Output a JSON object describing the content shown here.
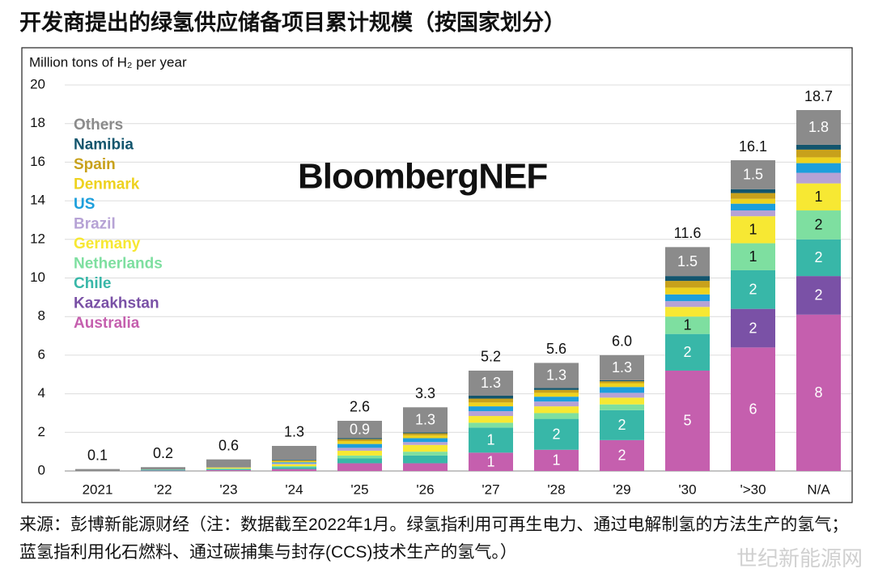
{
  "chart_data": {
    "type": "stacked_bar",
    "title": "开发商提出的绿氢供应储备项目累计规模（按国家划分）",
    "y_axis_label": "Million tons of H₂ per year",
    "annotation": "BloombergNEF",
    "source": "来源：彭博新能源财经（注：数据截至2022年1月。绿氢指利用可再生电力、通过电解制氢的方法生产的氢气；蓝氢指利用化石燃料、通过碳捕集与封存(CCS)技术生产的氢气。）",
    "watermark": "世纪新能源网",
    "categories": [
      "2021",
      "'22",
      "'23",
      "'24",
      "'25",
      "'26",
      "'27",
      "'28",
      "'29",
      "'30",
      "'>30",
      "N/A"
    ],
    "ylim": [
      0,
      20
    ],
    "yticks": [
      0,
      2,
      4,
      6,
      8,
      10,
      12,
      14,
      16,
      18,
      20
    ],
    "grid": true,
    "totals": [
      0.1,
      0.2,
      0.6,
      1.3,
      2.6,
      3.3,
      5.2,
      5.6,
      6.0,
      11.6,
      16.1,
      18.7
    ],
    "total_labels": [
      "0.1",
      "0.2",
      "0.6",
      "1.3",
      "2.6",
      "3.3",
      "5.2",
      "5.6",
      "6.0",
      "11.6",
      "16.1",
      "18.7"
    ],
    "series": [
      {
        "name": "Australia",
        "color": "#c55fae",
        "values": [
          0,
          0.02,
          0.05,
          0.1,
          0.4,
          0.4,
          0.95,
          1.1,
          1.6,
          5.2,
          6.4,
          8.1
        ],
        "value_labels": [
          null,
          null,
          null,
          null,
          null,
          null,
          "1",
          "1",
          "2",
          "5",
          "6",
          "8"
        ]
      },
      {
        "name": "Kazakhstan",
        "color": "#7a51a6",
        "values": [
          0,
          0,
          0,
          0,
          0,
          0,
          0,
          0,
          0,
          0,
          2.0,
          2.0
        ],
        "value_labels": [
          null,
          null,
          null,
          null,
          null,
          null,
          null,
          null,
          null,
          null,
          "2",
          "2"
        ]
      },
      {
        "name": "Chile",
        "color": "#38b7a8",
        "values": [
          0,
          0.04,
          0.05,
          0.1,
          0.25,
          0.4,
          1.3,
          1.6,
          1.55,
          1.9,
          2.0,
          1.9
        ],
        "value_labels": [
          null,
          null,
          null,
          null,
          null,
          null,
          "1",
          "2",
          "2",
          "2",
          "2",
          "2"
        ]
      },
      {
        "name": "Netherlands",
        "color": "#7edfa0",
        "values": [
          0,
          0.02,
          0.03,
          0.05,
          0.15,
          0.2,
          0.25,
          0.3,
          0.3,
          0.9,
          1.4,
          1.5
        ],
        "value_labels": [
          null,
          null,
          null,
          null,
          null,
          null,
          null,
          null,
          null,
          "1",
          "1",
          "2"
        ]
      },
      {
        "name": "Germany",
        "color": "#f7e833",
        "values": [
          0,
          0,
          0.05,
          0.1,
          0.25,
          0.35,
          0.35,
          0.35,
          0.35,
          0.5,
          1.4,
          1.4
        ],
        "value_labels": [
          null,
          null,
          null,
          null,
          null,
          null,
          null,
          null,
          null,
          null,
          "1",
          "1"
        ]
      },
      {
        "name": "Brazil",
        "color": "#b6a2d5",
        "values": [
          0,
          0,
          0,
          0.05,
          0.15,
          0.15,
          0.25,
          0.25,
          0.25,
          0.3,
          0.3,
          0.55
        ]
      },
      {
        "name": "US",
        "color": "#1d9fdc",
        "values": [
          0,
          0,
          0,
          0.05,
          0.2,
          0.2,
          0.25,
          0.25,
          0.3,
          0.35,
          0.35,
          0.5
        ]
      },
      {
        "name": "Denmark",
        "color": "#eed21f",
        "values": [
          0,
          0,
          0,
          0.05,
          0.15,
          0.15,
          0.2,
          0.2,
          0.2,
          0.35,
          0.25,
          0.3
        ]
      },
      {
        "name": "Spain",
        "color": "#c8a11b",
        "values": [
          0,
          0,
          0,
          0.05,
          0.1,
          0.1,
          0.2,
          0.15,
          0.1,
          0.35,
          0.3,
          0.4
        ]
      },
      {
        "name": "Namibia",
        "color": "#13556d",
        "values": [
          0,
          0,
          0,
          0.03,
          0.05,
          0.05,
          0.15,
          0.1,
          0.05,
          0.25,
          0.2,
          0.25
        ]
      },
      {
        "name": "Others",
        "color": "#8b8b8b",
        "values": [
          0.1,
          0.12,
          0.42,
          0.72,
          0.9,
          1.3,
          1.3,
          1.3,
          1.3,
          1.5,
          1.5,
          1.8
        ],
        "value_labels": [
          null,
          null,
          null,
          null,
          "0.9",
          "1.3",
          "1.3",
          "1.3",
          "1.3",
          "1.5",
          "1.5",
          "1.8"
        ]
      }
    ]
  }
}
